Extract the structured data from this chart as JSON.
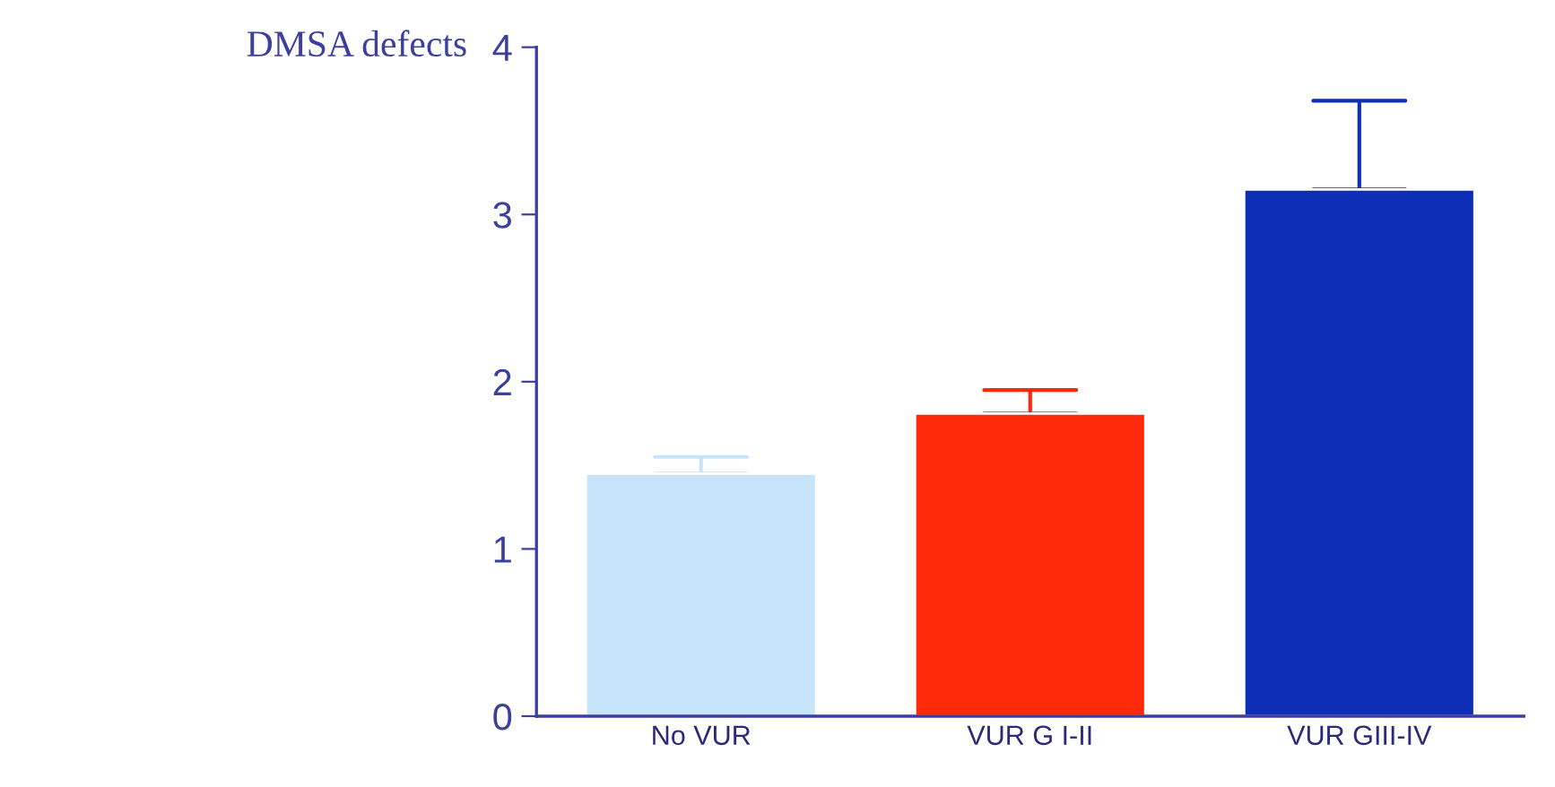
{
  "chart_data": {
    "type": "bar",
    "ylabel": "DMSA defects",
    "categories": [
      "No VUR",
      "VUR G I-II",
      "VUR GIII-IV"
    ],
    "values": [
      1.45,
      1.81,
      3.15
    ],
    "errors": [
      [
        1.45,
        1.55
      ],
      [
        1.81,
        1.95
      ],
      [
        3.15,
        3.68
      ]
    ],
    "colors": [
      "#c6e4fa",
      "#fe2a0a",
      "#0d2fb8"
    ],
    "ylim": [
      0,
      4
    ],
    "yticks": [
      0,
      1,
      2,
      3,
      4
    ],
    "grid": false
  }
}
